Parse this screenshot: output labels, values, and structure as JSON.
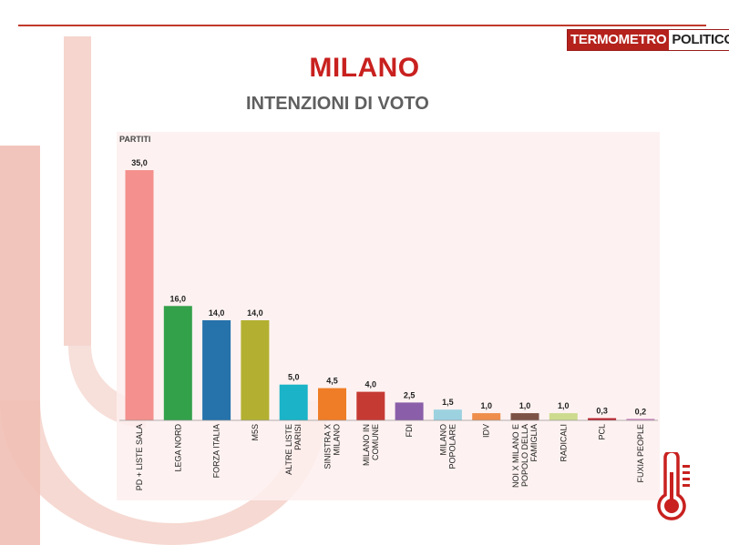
{
  "brand": {
    "part1": "TERMOMETRO",
    "part2": "POLITICO"
  },
  "title": "MILANO",
  "subtitle": "INTENZIONI DI VOTO",
  "colors": {
    "accent": "#c8211f",
    "subtitle": "#5f5f5f"
  },
  "chart_data": {
    "type": "bar",
    "title": "",
    "xlabel": "PARTITI",
    "ylabel": "",
    "ylim": [
      0,
      35
    ],
    "grid": false,
    "categories": [
      "PD + LISTE SALA",
      "LEGA NORD",
      "FORZA ITALIA",
      "M5S",
      "ALTRE LISTE PARISI",
      "SINISTRA X MILANO",
      "MILANO IN COMUNE",
      "FDI",
      "MILANO POPOLARE",
      "IDV",
      "NOI X MILANO E POPOLO DELLA FAMIGLIA",
      "RADICALI",
      "PCL",
      "FUXIA PEOPLE"
    ],
    "category_lines": [
      [
        "PD + LISTE SALA"
      ],
      [
        "LEGA NORD"
      ],
      [
        "FORZA ITALIA"
      ],
      [
        "M5S"
      ],
      [
        "ALTRE LISTE",
        "PARISI"
      ],
      [
        "SINISTRA X",
        "MILANO"
      ],
      [
        "MILANO IN",
        "COMUNE"
      ],
      [
        "FDI"
      ],
      [
        "MILANO",
        "POPOLARE"
      ],
      [
        "IDV"
      ],
      [
        "NOI X MILANO E",
        "POPOLO DELLA",
        "FAMIGLIA"
      ],
      [
        "RADICALI"
      ],
      [
        "PCL"
      ],
      [
        "FUXIA PEOPLE"
      ]
    ],
    "values": [
      35.0,
      16.0,
      14.0,
      14.0,
      5.0,
      4.5,
      4.0,
      2.5,
      1.5,
      1.0,
      1.0,
      1.0,
      0.3,
      0.2
    ],
    "value_labels": [
      "35,0",
      "16,0",
      "14,0",
      "14,0",
      "5,0",
      "4,5",
      "4,0",
      "2,5",
      "1,5",
      "1,0",
      "1,0",
      "1,0",
      "0,3",
      "0,2"
    ],
    "colors": [
      "#f4908d",
      "#33a04a",
      "#2672ab",
      "#b3b031",
      "#1ab3c7",
      "#ef7d27",
      "#c63a34",
      "#8b5ea9",
      "#9cd2e0",
      "#ef8d4c",
      "#7d5246",
      "#cddb8f",
      "#b8232f",
      "#c97dbc"
    ]
  }
}
